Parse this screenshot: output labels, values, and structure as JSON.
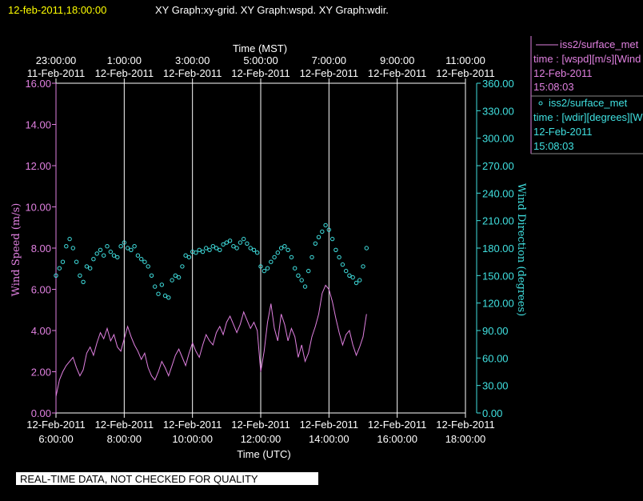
{
  "header": {
    "timestamp": "12-feb-2011,18:00:00",
    "graph_titles": "XY Graph:xy-grid.  XY Graph:wspd.  XY Graph:wdir."
  },
  "legend": [
    {
      "line1": "iss2/surface_met",
      "line2": "time : [wspd][m/s][Wind",
      "line3": "12-Feb-2011",
      "line4": "15:08:03",
      "color": "#e080e0"
    },
    {
      "line1": "iss2/surface_met",
      "line2": "time : [wdir][degrees][W",
      "line3": "12-Feb-2011",
      "line4": "15:08:03",
      "color": "#40e0e0"
    }
  ],
  "footer": {
    "disclaimer": "REAL-TIME DATA, NOT CHECKED FOR QUALITY"
  },
  "chart_data": {
    "type": "line",
    "top_axis": {
      "label": "Time (MST)",
      "ticks": [
        {
          "time": "23:00:00",
          "date": "11-Feb-2011"
        },
        {
          "time": "1:00:00",
          "date": "12-Feb-2011"
        },
        {
          "time": "3:00:00",
          "date": "12-Feb-2011"
        },
        {
          "time": "5:00:00",
          "date": "12-Feb-2011"
        },
        {
          "time": "7:00:00",
          "date": "12-Feb-2011"
        },
        {
          "time": "9:00:00",
          "date": "12-Feb-2011"
        },
        {
          "time": "11:00:00",
          "date": "12-Feb-2011"
        }
      ]
    },
    "bottom_axis": {
      "label": "Time (UTC)",
      "ticks": [
        {
          "date": "12-Feb-2011",
          "time": "6:00:00"
        },
        {
          "date": "12-Feb-2011",
          "time": "8:00:00"
        },
        {
          "date": "12-Feb-2011",
          "time": "10:00:00"
        },
        {
          "date": "12-Feb-2011",
          "time": "12:00:00"
        },
        {
          "date": "12-Feb-2011",
          "time": "14:00:00"
        },
        {
          "date": "12-Feb-2011",
          "time": "16:00:00"
        },
        {
          "date": "12-Feb-2011",
          "time": "18:00:00"
        }
      ],
      "xlim": [
        6,
        18
      ]
    },
    "left_axis": {
      "label": "Wind Speed (m/s)",
      "ticks": [
        "0.00",
        "2.00",
        "4.00",
        "6.00",
        "8.00",
        "10.00",
        "12.00",
        "14.00",
        "16.00"
      ],
      "ylim": [
        0,
        16
      ],
      "color": "#e080e0"
    },
    "right_axis": {
      "label": "Wind Direction (degrees)",
      "ticks": [
        "0.00",
        "30.00",
        "60.00",
        "90.00",
        "120.00",
        "150.00",
        "180.00",
        "210.00",
        "240.00",
        "270.00",
        "300.00",
        "330.00",
        "360.00"
      ],
      "ylim": [
        0,
        360
      ],
      "color": "#40e0e0"
    },
    "grid": "vertical lines at bottom-axis ticks",
    "series": [
      {
        "name": "wspd",
        "style": "line",
        "color": "#e080e0",
        "x": [
          6.0,
          6.1,
          6.2,
          6.3,
          6.4,
          6.5,
          6.6,
          6.7,
          6.8,
          6.9,
          7.0,
          7.1,
          7.2,
          7.3,
          7.4,
          7.5,
          7.6,
          7.7,
          7.8,
          7.9,
          8.0,
          8.1,
          8.2,
          8.3,
          8.4,
          8.5,
          8.6,
          8.7,
          8.8,
          8.9,
          9.0,
          9.1,
          9.2,
          9.3,
          9.4,
          9.5,
          9.6,
          9.7,
          9.8,
          9.9,
          10.0,
          10.1,
          10.2,
          10.3,
          10.4,
          10.5,
          10.6,
          10.7,
          10.8,
          10.9,
          11.0,
          11.1,
          11.2,
          11.3,
          11.4,
          11.5,
          11.6,
          11.7,
          11.8,
          11.9,
          12.0,
          12.1,
          12.2,
          12.3,
          12.4,
          12.5,
          12.6,
          12.7,
          12.8,
          12.9,
          13.0,
          13.1,
          13.2,
          13.3,
          13.4,
          13.5,
          13.6,
          13.7,
          13.8,
          13.9,
          14.0,
          14.1,
          14.2,
          14.3,
          14.4,
          14.5,
          14.6,
          14.7,
          14.8,
          14.9,
          15.0,
          15.1
        ],
        "values": [
          0.8,
          1.6,
          2.0,
          2.3,
          2.5,
          2.7,
          2.2,
          1.8,
          2.1,
          2.9,
          3.2,
          2.8,
          3.4,
          3.9,
          3.6,
          4.1,
          3.5,
          3.8,
          3.2,
          3.0,
          3.6,
          4.2,
          3.7,
          3.3,
          3.0,
          2.6,
          2.9,
          2.2,
          1.8,
          1.6,
          2.0,
          2.5,
          2.2,
          1.8,
          2.3,
          2.8,
          3.1,
          2.7,
          2.3,
          2.9,
          3.4,
          3.0,
          2.7,
          3.3,
          3.8,
          3.5,
          3.3,
          3.9,
          4.2,
          3.8,
          4.4,
          4.7,
          4.3,
          3.9,
          4.3,
          4.9,
          4.5,
          4.1,
          4.4,
          4.0,
          2.0,
          3.0,
          4.4,
          5.3,
          4.1,
          3.5,
          4.8,
          4.3,
          3.5,
          4.1,
          3.7,
          2.7,
          3.3,
          2.5,
          2.9,
          3.7,
          4.2,
          4.8,
          5.8,
          6.2,
          6.0,
          5.4,
          4.6,
          3.9,
          3.3,
          3.8,
          4.0,
          3.3,
          2.8,
          3.2,
          3.7,
          4.8
        ]
      },
      {
        "name": "wdir",
        "style": "circles",
        "color": "#40e0e0",
        "x": [
          6.0,
          6.1,
          6.2,
          6.3,
          6.4,
          6.5,
          6.6,
          6.7,
          6.8,
          6.9,
          7.0,
          7.1,
          7.2,
          7.3,
          7.4,
          7.5,
          7.6,
          7.7,
          7.8,
          7.9,
          8.0,
          8.1,
          8.2,
          8.3,
          8.4,
          8.5,
          8.6,
          8.7,
          8.8,
          8.9,
          9.0,
          9.1,
          9.2,
          9.3,
          9.4,
          9.5,
          9.6,
          9.7,
          9.8,
          9.9,
          10.0,
          10.1,
          10.2,
          10.3,
          10.4,
          10.5,
          10.6,
          10.7,
          10.8,
          10.9,
          11.0,
          11.1,
          11.2,
          11.3,
          11.4,
          11.5,
          11.6,
          11.7,
          11.8,
          11.9,
          12.0,
          12.1,
          12.2,
          12.3,
          12.4,
          12.5,
          12.6,
          12.7,
          12.8,
          12.9,
          13.0,
          13.1,
          13.2,
          13.3,
          13.4,
          13.5,
          13.6,
          13.7,
          13.8,
          13.9,
          14.0,
          14.1,
          14.2,
          14.3,
          14.4,
          14.5,
          14.6,
          14.7,
          14.8,
          14.9,
          15.0,
          15.1
        ],
        "values": [
          150,
          158,
          165,
          182,
          190,
          180,
          165,
          150,
          143,
          160,
          158,
          168,
          174,
          178,
          172,
          182,
          176,
          172,
          170,
          182,
          186,
          180,
          178,
          182,
          172,
          168,
          165,
          160,
          150,
          138,
          130,
          140,
          128,
          126,
          145,
          150,
          148,
          160,
          172,
          170,
          176,
          175,
          178,
          176,
          180,
          178,
          182,
          180,
          178,
          184,
          186,
          188,
          182,
          180,
          186,
          190,
          185,
          180,
          178,
          175,
          160,
          155,
          158,
          165,
          170,
          175,
          180,
          182,
          178,
          170,
          158,
          150,
          145,
          138,
          155,
          170,
          185,
          192,
          198,
          205,
          200,
          190,
          178,
          170,
          162,
          155,
          150,
          148,
          142,
          145,
          160,
          180
        ]
      }
    ]
  }
}
